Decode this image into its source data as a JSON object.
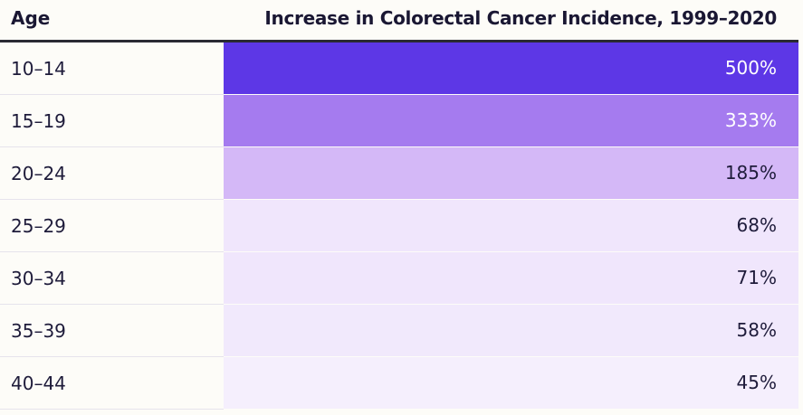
{
  "chart_data": {
    "type": "table",
    "columns": [
      "Age",
      "Increase in Colorectal Cancer Incidence, 1999–2020"
    ],
    "rows": [
      {
        "age": "10–14",
        "value": "500%",
        "pct": 500,
        "color": "#5d37e6",
        "text_color": "#ffffff"
      },
      {
        "age": "15–19",
        "value": "333%",
        "pct": 333,
        "color": "#a57bef",
        "text_color": "#ffffff"
      },
      {
        "age": "20–24",
        "value": "185%",
        "pct": 185,
        "color": "#d4b8f7",
        "text_color": "#1e1b3a"
      },
      {
        "age": "25–29",
        "value": "68%",
        "pct": 68,
        "color": "#f0e6fc",
        "text_color": "#1e1b3a"
      },
      {
        "age": "30–34",
        "value": "71%",
        "pct": 71,
        "color": "#f0e6fc",
        "text_color": "#1e1b3a"
      },
      {
        "age": "35–39",
        "value": "58%",
        "pct": 58,
        "color": "#f1e9fc",
        "text_color": "#1e1b3a"
      },
      {
        "age": "40–44",
        "value": "45%",
        "pct": 45,
        "color": "#f5effd",
        "text_color": "#1e1b3a"
      }
    ]
  }
}
